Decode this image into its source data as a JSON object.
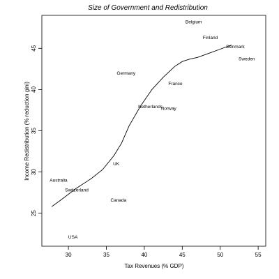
{
  "chart_data": {
    "type": "scatter",
    "title": "Size of Government and Redistribution",
    "xlabel": "Tax Revenues (% GDP)",
    "ylabel": "Income Redistribution (% reduction gini)",
    "xlim": [
      26.5,
      56
    ],
    "ylim": [
      21,
      49
    ],
    "x_ticks": [
      30,
      35,
      40,
      45,
      50,
      55
    ],
    "y_ticks": [
      25,
      30,
      35,
      40,
      45
    ],
    "grid": false,
    "legend": "none",
    "points": [
      {
        "label": "Belgium",
        "x": 46.5,
        "y": 48.2
      },
      {
        "label": "Finland",
        "x": 48.7,
        "y": 46.3
      },
      {
        "label": "Denmark",
        "x": 52.0,
        "y": 45.2
      },
      {
        "label": "Sweden",
        "x": 53.5,
        "y": 43.7
      },
      {
        "label": "Germany",
        "x": 37.6,
        "y": 42.0
      },
      {
        "label": "France",
        "x": 44.1,
        "y": 40.7
      },
      {
        "label": "Netherlands",
        "x": 40.8,
        "y": 37.9
      },
      {
        "label": "Norway",
        "x": 43.2,
        "y": 37.7
      },
      {
        "label": "UK",
        "x": 36.3,
        "y": 31.0
      },
      {
        "label": "Australia",
        "x": 28.7,
        "y": 29.0
      },
      {
        "label": "Switzerland",
        "x": 31.1,
        "y": 27.8
      },
      {
        "label": "Canada",
        "x": 36.6,
        "y": 26.6
      },
      {
        "label": "USA",
        "x": 30.6,
        "y": 22.1
      }
    ],
    "trend_line": {
      "x": [
        27.8,
        29,
        31,
        33,
        34.5,
        36,
        37,
        38,
        39.5,
        41,
        42.5,
        44,
        45,
        46,
        47,
        48.5,
        50,
        51.5
      ],
      "y": [
        25.8,
        26.6,
        28.0,
        29.2,
        30.3,
        32.0,
        33.5,
        35.6,
        38.0,
        40.0,
        41.5,
        42.8,
        43.4,
        43.7,
        43.9,
        44.4,
        44.9,
        45.4
      ]
    }
  }
}
